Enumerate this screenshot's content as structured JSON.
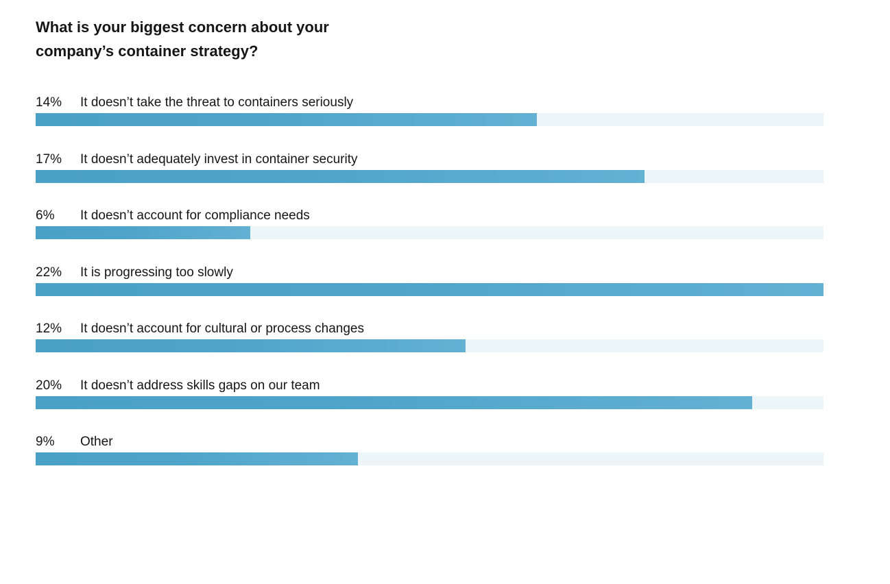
{
  "chart_data": {
    "type": "bar",
    "orientation": "horizontal",
    "title": "What is your biggest concern about your company’s container strategy?",
    "title_lines": [
      "What is your biggest concern about your",
      "company’s container strategy?"
    ],
    "categories": [
      "It doesn’t take the threat to containers seriously",
      "It doesn’t adequately invest in container security",
      "It doesn’t account for compliance needs",
      "It is progressing too slowly",
      "It doesn’t account for cultural or process changes",
      "It doesn’t address skills gaps on our team",
      "Other"
    ],
    "values": [
      14,
      17,
      6,
      22,
      12,
      20,
      9
    ],
    "value_labels": [
      "14%",
      "17%",
      "6%",
      "22%",
      "12%",
      "20%",
      "9%"
    ],
    "unit": "%",
    "xlim": [
      0,
      22
    ],
    "grid": false,
    "legend": "none",
    "colors": {
      "bar": "#4ea3ca",
      "bar_end": "#63b1d3",
      "track": "#ecf6f9",
      "text": "#151515"
    }
  }
}
